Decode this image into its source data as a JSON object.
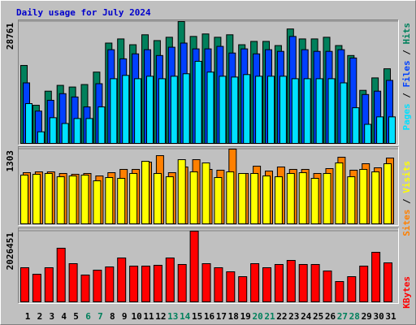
{
  "title": "Daily usage for July 2024",
  "title_color": "#0000cc",
  "chart_data": [
    {
      "type": "bar",
      "ylim": [
        0,
        28761
      ],
      "yticks": [
        28761
      ],
      "legend_separator": " / ",
      "series": [
        {
          "name": "Pages",
          "color": "#00e0ff",
          "values": [
            9394,
            2740,
            6067,
            4697,
            5871,
            5871,
            8611,
            15265,
            16047,
            15265,
            15852,
            15265,
            15852,
            16439,
            19374,
            16830,
            15852,
            15656,
            16243,
            15852,
            15852,
            15852,
            15265,
            15265,
            15265,
            15265,
            14286,
            8415,
            4501,
            6262,
            6262
          ]
        },
        {
          "name": "Files",
          "color": "#0040ff",
          "values": [
            14286,
            7632,
            10176,
            11742,
            10959,
            8611,
            14090,
            22114,
            19961,
            21136,
            22114,
            20744,
            22701,
            23680,
            22310,
            22310,
            22897,
            21331,
            22310,
            21136,
            22114,
            21723,
            25245,
            22114,
            21723,
            21723,
            22114,
            20157,
            11546,
            12329,
            14873
          ]
        },
        {
          "name": "Hits",
          "color": "#00805c",
          "values": [
            18396,
            9002,
            12329,
            13699,
            13308,
            13895,
            16830,
            23680,
            24658,
            23288,
            25637,
            24267,
            25050,
            28761,
            25245,
            25832,
            25050,
            25637,
            23288,
            24071,
            24071,
            23093,
            27007,
            24658,
            24658,
            25050,
            23093,
            20744,
            12525,
            15460,
            17613
          ]
        }
      ]
    },
    {
      "type": "bar",
      "ylim": [
        0,
        1303
      ],
      "yticks": [
        1303
      ],
      "legend_separator": " / ",
      "series": [
        {
          "name": "Sites",
          "color": "#ff8000",
          "values": [
            892,
            906,
            906,
            878,
            864,
            878,
            835,
            892,
            949,
            949,
            1076,
            1189,
            892,
            991,
            1119,
            949,
            935,
            1303,
            878,
            1005,
            920,
            991,
            949,
            949,
            878,
            963,
            1161,
            935,
            1048,
            977,
            1147
          ]
        },
        {
          "name": "Visits",
          "color": "#ffff00",
          "values": [
            850,
            864,
            878,
            821,
            835,
            850,
            750,
            807,
            793,
            878,
            1090,
            878,
            821,
            1119,
            906,
            1062,
            807,
            906,
            878,
            878,
            835,
            821,
            878,
            892,
            793,
            878,
            1062,
            821,
            949,
            906,
            1048
          ]
        }
      ]
    },
    {
      "type": "bar",
      "ylim": [
        0,
        2026451
      ],
      "yticks": [
        2026451
      ],
      "series": [
        {
          "name": "KBytes",
          "color": "#ff0000",
          "values": [
            978306,
            791962,
            978306,
            1537338,
            1094771,
            768669,
            908427,
            1001599,
            1257822,
            1024892,
            1024892,
            1048185,
            1257822,
            1071478,
            2026451,
            1094771,
            978306,
            861841,
            722083,
            1094771,
            978306,
            1071478,
            1187943,
            1071478,
            1071478,
            885134,
            582325,
            722083,
            1024892,
            1420873,
            1118064
          ]
        }
      ],
      "categories": [
        "1",
        "2",
        "3",
        "4",
        "5",
        "6",
        "7",
        "8",
        "9",
        "10",
        "11",
        "12",
        "13",
        "14",
        "15",
        "16",
        "17",
        "18",
        "19",
        "20",
        "21",
        "22",
        "23",
        "24",
        "25",
        "26",
        "27",
        "28",
        "29",
        "30",
        "31"
      ],
      "category_colors": [
        "#000000",
        "#000000",
        "#000000",
        "#000000",
        "#000000",
        "#00805c",
        "#00805c",
        "#000000",
        "#000000",
        "#000000",
        "#000000",
        "#000000",
        "#00805c",
        "#00805c",
        "#000000",
        "#000000",
        "#000000",
        "#000000",
        "#000000",
        "#00805c",
        "#00805c",
        "#000000",
        "#000000",
        "#000000",
        "#000000",
        "#000000",
        "#00805c",
        "#00805c",
        "#000000",
        "#000000",
        "#000000"
      ]
    }
  ]
}
